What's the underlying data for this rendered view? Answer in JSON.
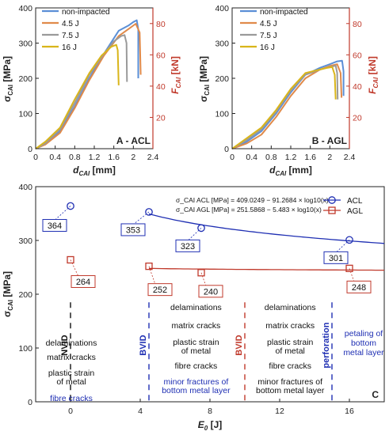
{
  "colors": {
    "non_impacted": "#5b8fd6",
    "j45": "#e08a4a",
    "j75": "#9a9a9a",
    "j16": "#d9b51a",
    "acl": "#1f2fb3",
    "agl": "#c0392b",
    "right_axis": "#c0392b",
    "text_blue": "#1f2fb3"
  },
  "chart_data": [
    {
      "panel": "A",
      "type": "line",
      "panel_label": "A - ACL",
      "xlabel": "d_CAI [mm]",
      "ylabel": "σ_CAI [MPa]",
      "y2label": "F_CAI [kN]",
      "xlim": [
        0,
        2.4
      ],
      "ylim": [
        0,
        400
      ],
      "y2lim": [
        0,
        90
      ],
      "xticks": [
        "0",
        "0.4",
        "0.8",
        "1.2",
        "1.6",
        "2",
        "2.4"
      ],
      "yticks": [
        "0",
        "100",
        "200",
        "300",
        "400"
      ],
      "y2ticks": [
        "20",
        "40",
        "60",
        "80"
      ],
      "legend": [
        "non-impacted",
        "4.5 J",
        "7.5 J",
        "16 J"
      ],
      "series": [
        {
          "name": "non-impacted",
          "color_key": "non_impacted",
          "x": [
            0,
            0.2,
            0.5,
            0.8,
            1.1,
            1.4,
            1.7,
            1.9,
            2.0,
            2.07,
            2.1,
            2.1
          ],
          "y": [
            0,
            15,
            50,
            120,
            200,
            270,
            335,
            350,
            360,
            365,
            340,
            200
          ]
        },
        {
          "name": "4.5 J",
          "color_key": "j45",
          "x": [
            0,
            0.2,
            0.5,
            0.8,
            1.1,
            1.4,
            1.7,
            1.9,
            2.05,
            2.13,
            2.15
          ],
          "y": [
            0,
            12,
            45,
            115,
            195,
            265,
            320,
            340,
            355,
            330,
            210
          ]
        },
        {
          "name": "7.5 J",
          "color_key": "j75",
          "x": [
            0,
            0.2,
            0.5,
            0.8,
            1.1,
            1.4,
            1.6,
            1.75,
            1.82,
            1.86,
            1.87
          ],
          "y": [
            0,
            15,
            55,
            130,
            210,
            270,
            305,
            320,
            323,
            300,
            190
          ]
        },
        {
          "name": "16 J",
          "color_key": "j16",
          "x": [
            0,
            0.2,
            0.5,
            0.8,
            1.1,
            1.35,
            1.55,
            1.65,
            1.68,
            1.7
          ],
          "y": [
            0,
            20,
            60,
            140,
            215,
            265,
            290,
            295,
            280,
            180
          ]
        }
      ]
    },
    {
      "panel": "B",
      "type": "line",
      "panel_label": "B - AGL",
      "xlabel": "d_CAI [mm]",
      "ylabel": "σ_CAI [MPa]",
      "y2label": "F_CAI [kN]",
      "xlim": [
        0,
        2.4
      ],
      "ylim": [
        0,
        400
      ],
      "y2lim": [
        0,
        90
      ],
      "xticks": [
        "0",
        "0.4",
        "0.8",
        "1.2",
        "1.6",
        "2",
        "2.4"
      ],
      "yticks": [
        "0",
        "100",
        "200",
        "300",
        "400"
      ],
      "y2ticks": [
        "20",
        "40",
        "60",
        "80"
      ],
      "legend": [
        "non-impacted",
        "4.5 J",
        "7.5 J",
        "16 J"
      ],
      "series": [
        {
          "name": "non-impacted",
          "color_key": "non_impacted",
          "x": [
            0,
            0.3,
            0.6,
            0.9,
            1.2,
            1.5,
            1.8,
            2.0,
            2.15,
            2.25,
            2.28,
            2.28
          ],
          "y": [
            0,
            20,
            50,
            100,
            160,
            210,
            230,
            240,
            248,
            250,
            220,
            150
          ]
        },
        {
          "name": "4.5 J",
          "color_key": "j45",
          "x": [
            0,
            0.3,
            0.6,
            0.9,
            1.2,
            1.5,
            1.8,
            2.0,
            2.15,
            2.22,
            2.24
          ],
          "y": [
            0,
            15,
            40,
            90,
            150,
            200,
            225,
            235,
            240,
            215,
            145
          ]
        },
        {
          "name": "7.5 J",
          "color_key": "j75",
          "x": [
            0,
            0.3,
            0.6,
            0.9,
            1.2,
            1.5,
            1.8,
            2.0,
            2.12,
            2.15,
            2.16
          ],
          "y": [
            0,
            25,
            55,
            105,
            165,
            210,
            225,
            232,
            236,
            215,
            140
          ]
        },
        {
          "name": "16 J",
          "color_key": "j16",
          "x": [
            0,
            0.3,
            0.6,
            0.9,
            1.2,
            1.5,
            1.8,
            1.95,
            2.05,
            2.1,
            2.12
          ],
          "y": [
            0,
            30,
            60,
            110,
            170,
            215,
            225,
            230,
            232,
            210,
            140
          ]
        }
      ]
    },
    {
      "panel": "C",
      "type": "scatter",
      "panel_label": "C",
      "xlabel": "E_0 [J]",
      "ylabel": "σ_CAI [MPa]",
      "xlim": [
        -2,
        18
      ],
      "ylim": [
        0,
        400
      ],
      "xticks": [
        0,
        4,
        8,
        12,
        16
      ],
      "yticks": [
        0,
        100,
        200,
        300,
        400
      ],
      "legend": [
        "ACL",
        "AGL"
      ],
      "equations": [
        "σ_CAI ACL [MPa] = 409.0249 − 91.2684 × log10(x)",
        "σ_CAI AGL [MPa] = 251.5868 − 5.483 × log10(x)"
      ],
      "series": [
        {
          "name": "ACL",
          "color_key": "acl",
          "x": [
            0,
            4.5,
            7.5,
            16
          ],
          "y": [
            364,
            353,
            323,
            301
          ],
          "labels": [
            "364",
            "353",
            "323",
            "301"
          ],
          "fit": {
            "a": 409.0249,
            "b": 91.2684
          }
        },
        {
          "name": "AGL",
          "color_key": "agl",
          "x": [
            0,
            4.5,
            7.5,
            16
          ],
          "y": [
            264,
            252,
            240,
            248
          ],
          "labels": [
            "264",
            "252",
            "240",
            "248"
          ],
          "fit": {
            "a": 251.5868,
            "b": 5.483
          }
        }
      ],
      "thresholds": [
        {
          "x": 0,
          "label": "NVID",
          "color_key": "black"
        },
        {
          "x": 4.5,
          "label": "BVID",
          "color_key": "acl"
        },
        {
          "x": 10,
          "label": "BVID",
          "color_key": "agl"
        },
        {
          "x": 15,
          "label": "perforation",
          "color_key": "acl"
        }
      ],
      "zone_texts": [
        {
          "x": 0,
          "lines_black": [
            "delaminations",
            "matrix cracks",
            "plastic strain",
            "of metal"
          ],
          "lines_blue": [
            "fibre cracks"
          ]
        },
        {
          "x": 7.2,
          "lines_black": [
            "delaminations",
            "matrix cracks",
            "plastic strain",
            "of metal",
            "fibre cracks"
          ],
          "lines_blue": [
            "minor fractures of",
            "bottom metal layer"
          ]
        },
        {
          "x": 12.6,
          "lines_black": [
            "delaminations",
            "matrix cracks",
            "plastic strain",
            "of metal",
            "fibre cracks",
            "minor fractures of",
            "bottom metal layer"
          ],
          "lines_blue": []
        },
        {
          "x": 17,
          "lines_black": [],
          "lines_blue": [
            "petaling of",
            "bottom",
            "metal layer"
          ]
        }
      ]
    }
  ]
}
